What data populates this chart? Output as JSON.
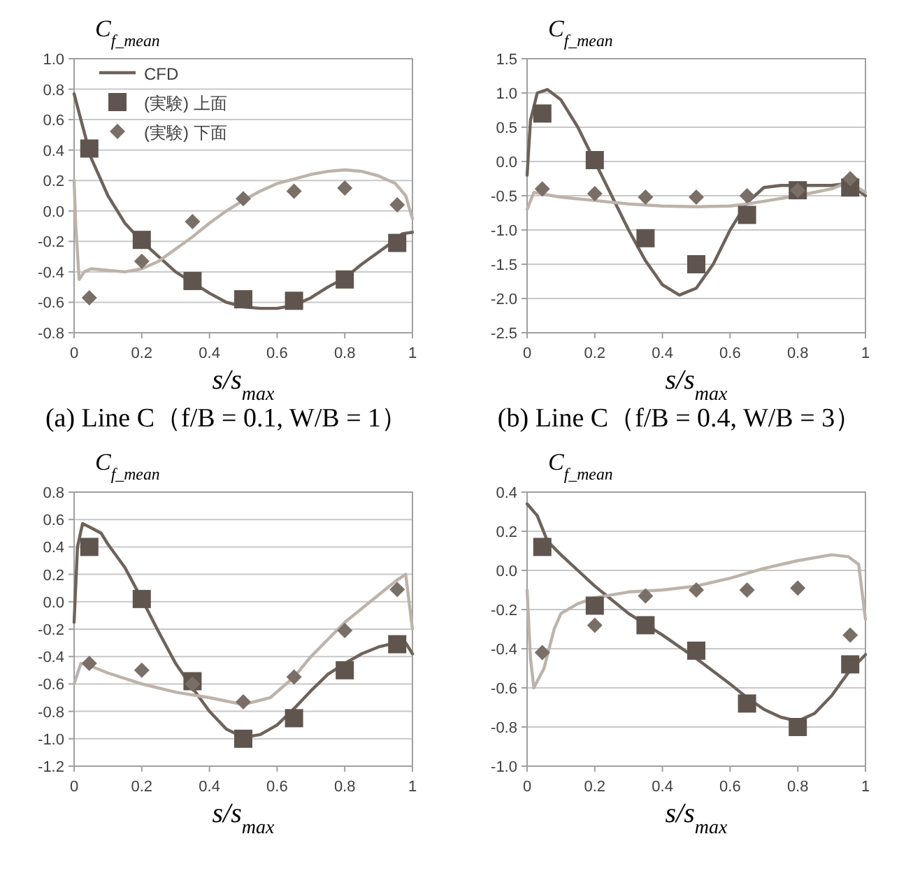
{
  "chart_data": [
    {
      "type": "line",
      "title": "(a) Line C（f/B = 0.1, W/B = 1）",
      "xlabel": "s/s$_{max}$",
      "ylabel": "C$_{f_mean}$",
      "xlim": [
        0,
        1
      ],
      "xticks": [
        0,
        0.2,
        0.4,
        0.6,
        0.8,
        1
      ],
      "ylim": [
        -0.8,
        1.0
      ],
      "yticks": [
        -0.8,
        -0.6,
        -0.4,
        -0.2,
        {
          "value": 0,
          "label": "0.0"
        },
        0.2,
        0.4,
        0.6,
        0.8,
        {
          "value": 1,
          "label": "1.0"
        }
      ],
      "grid": "y",
      "legend": "top left",
      "series": [
        {
          "name": "CFD",
          "color": "#6e625a",
          "x": [
            0,
            0.02,
            0.05,
            0.1,
            0.15,
            0.2,
            0.25,
            0.3,
            0.35,
            0.4,
            0.45,
            0.5,
            0.55,
            0.6,
            0.65,
            0.7,
            0.75,
            0.8,
            0.85,
            0.9,
            0.95,
            0.97,
            1
          ],
          "values": [
            0.77,
            0.6,
            0.35,
            0.1,
            -0.08,
            -0.2,
            -0.3,
            -0.4,
            -0.47,
            -0.54,
            -0.6,
            -0.63,
            -0.64,
            -0.64,
            -0.62,
            -0.57,
            -0.5,
            -0.44,
            -0.35,
            -0.27,
            -0.19,
            -0.15,
            -0.14
          ]
        },
        {
          "color": "#bdb3aa",
          "x": [
            0,
            0.005,
            0.015,
            0.03,
            0.05,
            0.1,
            0.15,
            0.2,
            0.25,
            0.3,
            0.35,
            0.4,
            0.45,
            0.5,
            0.55,
            0.6,
            0.65,
            0.7,
            0.75,
            0.8,
            0.85,
            0.9,
            0.95,
            0.98,
            1
          ],
          "values": [
            0.2,
            -0.1,
            -0.45,
            -0.4,
            -0.38,
            -0.39,
            -0.4,
            -0.38,
            -0.33,
            -0.25,
            -0.17,
            -0.08,
            0.0,
            0.07,
            0.13,
            0.18,
            0.21,
            0.24,
            0.26,
            0.27,
            0.26,
            0.23,
            0.18,
            0.1,
            -0.05
          ]
        },
        {
          "name": "(実験) 上面",
          "type": "scatter",
          "marker": "square",
          "color": "#5f554e",
          "x": [
            0.045,
            0.2,
            0.35,
            0.5,
            0.65,
            0.8,
            0.955
          ],
          "values": [
            0.41,
            -0.19,
            -0.46,
            -0.58,
            -0.59,
            -0.45,
            -0.21
          ]
        },
        {
          "name": "(実験) 下面",
          "type": "scatter",
          "marker": "diamond",
          "color": "#7a6f67",
          "x": [
            0.045,
            0.2,
            0.35,
            0.5,
            0.65,
            0.8,
            0.955
          ],
          "values": [
            -0.57,
            -0.33,
            -0.07,
            0.08,
            0.13,
            0.15,
            0.04
          ]
        }
      ]
    },
    {
      "type": "line",
      "title": "(b) Line C（f/B = 0.4, W/B = 3）",
      "xlabel": "s/s$_{max}$",
      "ylabel": "C$_{f_mean}$",
      "xlim": [
        0,
        1
      ],
      "xticks": [
        0,
        0.2,
        0.4,
        0.6,
        0.8,
        1
      ],
      "ylim": [
        -2.5,
        1.5
      ],
      "yticks": [
        -2.5,
        {
          "value": -2,
          "label": "-2.0"
        },
        -1.5,
        {
          "value": -1,
          "label": "-1.0"
        },
        -0.5,
        {
          "value": 0,
          "label": "0.0"
        },
        0.5,
        {
          "value": 1,
          "label": "1.0"
        },
        1.5
      ],
      "grid": "y",
      "series": [
        {
          "color": "#6e625a",
          "x": [
            0,
            0.01,
            0.03,
            0.06,
            0.1,
            0.15,
            0.2,
            0.25,
            0.3,
            0.35,
            0.4,
            0.45,
            0.5,
            0.55,
            0.6,
            0.65,
            0.7,
            0.75,
            0.8,
            0.9,
            0.95,
            1
          ],
          "values": [
            -0.2,
            0.6,
            1.0,
            1.05,
            0.9,
            0.5,
            0.0,
            -0.5,
            -1.0,
            -1.45,
            -1.8,
            -1.95,
            -1.85,
            -1.5,
            -1.0,
            -0.6,
            -0.38,
            -0.35,
            -0.35,
            -0.35,
            -0.32,
            -0.5
          ]
        },
        {
          "color": "#bdb3aa",
          "x": [
            0,
            0.02,
            0.05,
            0.1,
            0.2,
            0.3,
            0.4,
            0.5,
            0.6,
            0.65,
            0.7,
            0.8,
            0.9,
            0.95,
            1
          ],
          "values": [
            -0.7,
            -0.45,
            -0.48,
            -0.52,
            -0.57,
            -0.62,
            -0.65,
            -0.66,
            -0.65,
            -0.62,
            -0.58,
            -0.5,
            -0.4,
            -0.3,
            -0.45
          ]
        },
        {
          "type": "scatter",
          "marker": "square",
          "color": "#5f554e",
          "x": [
            0.045,
            0.2,
            0.35,
            0.5,
            0.65,
            0.8,
            0.955
          ],
          "values": [
            0.7,
            0.02,
            -1.12,
            -1.5,
            -0.78,
            -0.42,
            -0.38
          ]
        },
        {
          "type": "scatter",
          "marker": "diamond",
          "color": "#7a6f67",
          "x": [
            0.045,
            0.2,
            0.35,
            0.5,
            0.65,
            0.8,
            0.955
          ],
          "values": [
            -0.4,
            -0.47,
            -0.52,
            -0.52,
            -0.5,
            -0.42,
            -0.25
          ]
        }
      ]
    },
    {
      "type": "line",
      "xlabel": "s/s$_{max}$",
      "ylabel": "C$_{f_mean}$",
      "xlim": [
        0,
        1
      ],
      "xticks": [
        0,
        0.2,
        0.4,
        0.6,
        0.8,
        1
      ],
      "ylim": [
        -1.2,
        0.8
      ],
      "yticks": [
        -1.2,
        {
          "value": -1,
          "label": "-1.0"
        },
        -0.8,
        -0.6,
        -0.4,
        -0.2,
        {
          "value": 0,
          "label": "0.0"
        },
        0.2,
        0.4,
        0.6,
        0.8
      ],
      "grid": "y",
      "series": [
        {
          "color": "#6e625a",
          "x": [
            0,
            0.01,
            0.025,
            0.05,
            0.08,
            0.1,
            0.15,
            0.2,
            0.25,
            0.3,
            0.35,
            0.4,
            0.45,
            0.5,
            0.55,
            0.6,
            0.65,
            0.7,
            0.75,
            0.8,
            0.85,
            0.9,
            0.95,
            0.98,
            1
          ],
          "values": [
            -0.15,
            0.4,
            0.57,
            0.54,
            0.5,
            0.42,
            0.25,
            0.02,
            -0.22,
            -0.45,
            -0.63,
            -0.8,
            -0.93,
            -0.99,
            -0.97,
            -0.9,
            -0.78,
            -0.65,
            -0.53,
            -0.45,
            -0.38,
            -0.33,
            -0.3,
            -0.3,
            -0.38
          ]
        },
        {
          "color": "#bdb3aa",
          "x": [
            0,
            0.02,
            0.05,
            0.1,
            0.2,
            0.3,
            0.4,
            0.5,
            0.58,
            0.65,
            0.7,
            0.8,
            0.9,
            0.95,
            0.98,
            1
          ],
          "values": [
            -0.6,
            -0.45,
            -0.47,
            -0.52,
            -0.6,
            -0.66,
            -0.7,
            -0.75,
            -0.7,
            -0.55,
            -0.4,
            -0.15,
            0.05,
            0.15,
            0.2,
            -0.2
          ]
        },
        {
          "type": "scatter",
          "marker": "square",
          "color": "#5f554e",
          "x": [
            0.045,
            0.2,
            0.35,
            0.5,
            0.65,
            0.8,
            0.955
          ],
          "values": [
            0.4,
            0.02,
            -0.58,
            -1.0,
            -0.85,
            -0.5,
            -0.31
          ]
        },
        {
          "type": "scatter",
          "marker": "diamond",
          "color": "#7a6f67",
          "x": [
            0.045,
            0.2,
            0.35,
            0.5,
            0.65,
            0.8,
            0.955
          ],
          "values": [
            -0.45,
            -0.5,
            -0.6,
            -0.73,
            -0.55,
            -0.21,
            0.09
          ]
        }
      ]
    },
    {
      "type": "line",
      "xlabel": "s/s$_{max}$",
      "ylabel": "C$_{f_mean}$",
      "xlim": [
        0,
        1
      ],
      "xticks": [
        0,
        0.2,
        0.4,
        0.6,
        0.8,
        1
      ],
      "ylim": [
        -1.0,
        0.4
      ],
      "yticks": [
        {
          "value": -1,
          "label": "-1.0"
        },
        -0.8,
        -0.6,
        -0.4,
        -0.2,
        {
          "value": 0,
          "label": "0.0"
        },
        0.2,
        0.4
      ],
      "grid": "y",
      "series": [
        {
          "color": "#6e625a",
          "x": [
            0,
            0.03,
            0.06,
            0.1,
            0.15,
            0.2,
            0.25,
            0.3,
            0.4,
            0.5,
            0.6,
            0.65,
            0.7,
            0.75,
            0.8,
            0.85,
            0.9,
            0.95,
            1
          ],
          "values": [
            0.34,
            0.28,
            0.15,
            0.08,
            0.0,
            -0.08,
            -0.15,
            -0.22,
            -0.33,
            -0.45,
            -0.58,
            -0.65,
            -0.71,
            -0.75,
            -0.77,
            -0.73,
            -0.64,
            -0.52,
            -0.43
          ]
        },
        {
          "color": "#bdb3aa",
          "x": [
            0,
            0.01,
            0.02,
            0.05,
            0.08,
            0.1,
            0.15,
            0.2,
            0.3,
            0.4,
            0.5,
            0.6,
            0.7,
            0.8,
            0.9,
            0.95,
            0.98,
            1
          ],
          "values": [
            -0.1,
            -0.45,
            -0.6,
            -0.5,
            -0.3,
            -0.22,
            -0.17,
            -0.14,
            -0.11,
            -0.1,
            -0.08,
            -0.04,
            0.01,
            0.05,
            0.08,
            0.07,
            0.03,
            -0.25
          ]
        },
        {
          "type": "scatter",
          "marker": "square",
          "color": "#5f554e",
          "x": [
            0.045,
            0.2,
            0.35,
            0.5,
            0.65,
            0.8,
            0.955
          ],
          "values": [
            0.12,
            -0.18,
            -0.28,
            -0.41,
            -0.68,
            -0.8,
            -0.48
          ]
        },
        {
          "type": "scatter",
          "marker": "diamond",
          "color": "#7a6f67",
          "x": [
            0.045,
            0.2,
            0.35,
            0.5,
            0.65,
            0.8,
            0.955
          ],
          "values": [
            -0.42,
            -0.28,
            -0.13,
            -0.1,
            -0.1,
            -0.09,
            -0.33
          ]
        }
      ]
    }
  ]
}
